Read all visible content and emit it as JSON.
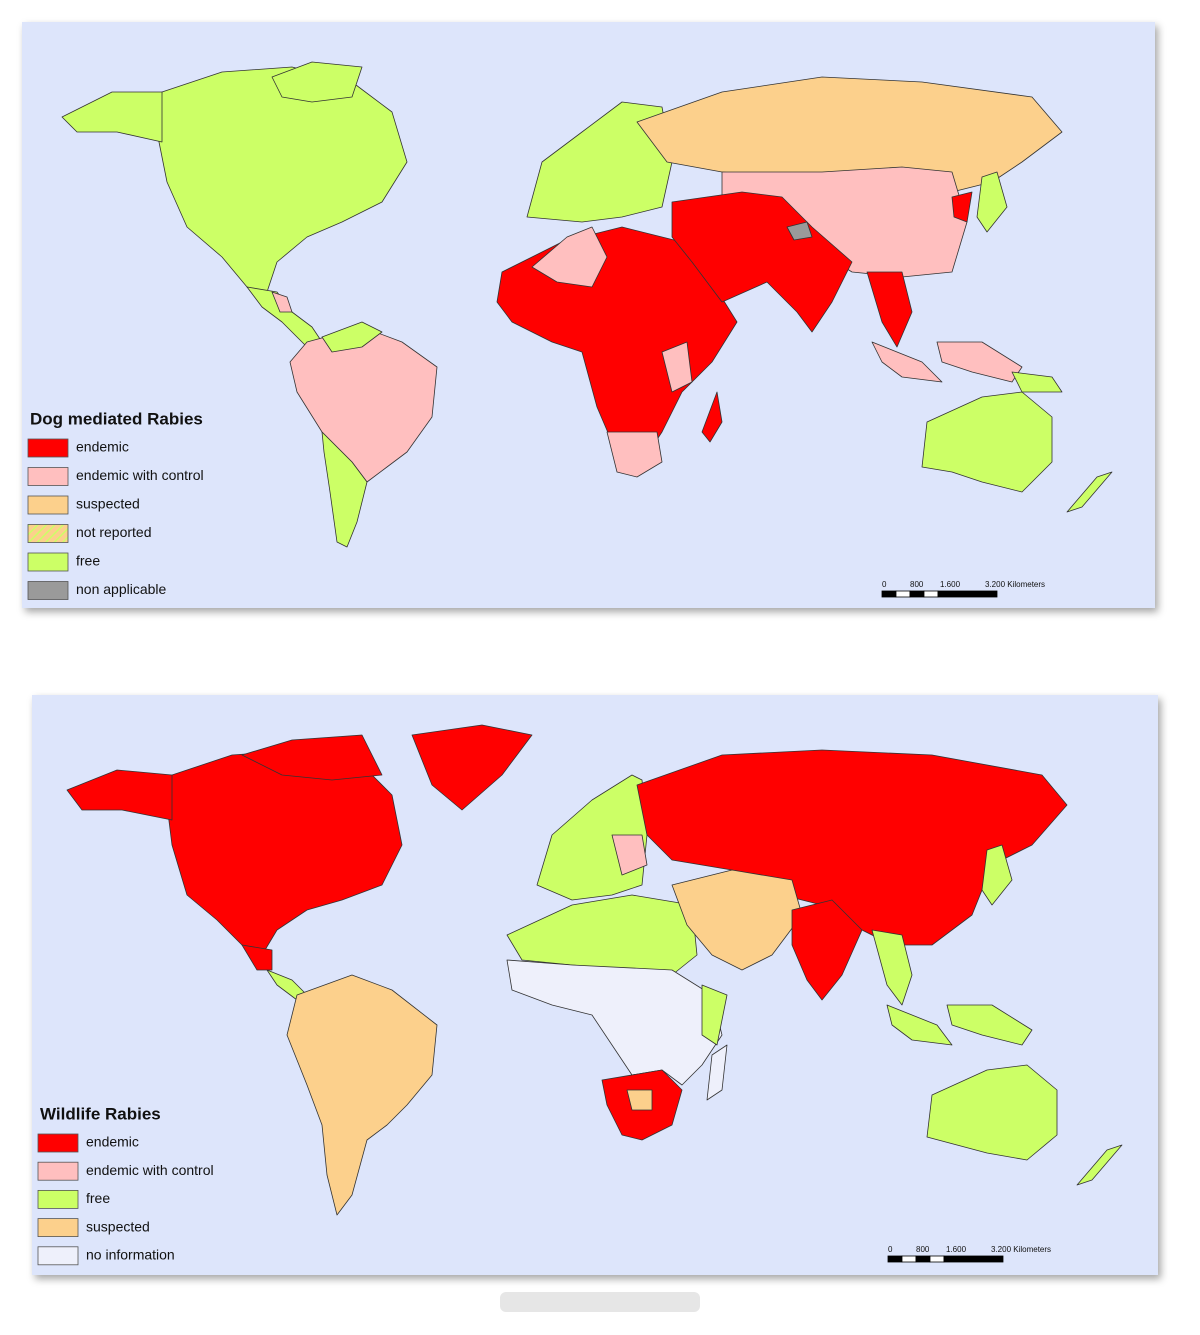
{
  "maps": [
    {
      "legend": {
        "title": "Dog mediated Rabies",
        "items": [
          {
            "label": "endemic",
            "color": "#ff0000"
          },
          {
            "label": "endemic with control",
            "color": "#ffbfbf"
          },
          {
            "label": "suspected",
            "color": "#fcd08c"
          },
          {
            "label": "not reported",
            "color": "#fcd08c",
            "hatched": true
          },
          {
            "label": "free",
            "color": "#ccff66"
          },
          {
            "label": "non applicable",
            "color": "#9a9a9a"
          }
        ]
      },
      "scale": {
        "labels": [
          "0",
          "800",
          "1.600",
          "3.200 Kilometers"
        ]
      }
    },
    {
      "legend": {
        "title": "Wildlife Rabies",
        "items": [
          {
            "label": "endemic",
            "color": "#ff0000"
          },
          {
            "label": "endemic with control",
            "color": "#ffbfbf"
          },
          {
            "label": "free",
            "color": "#ccff66"
          },
          {
            "label": "suspected",
            "color": "#fcd08c"
          },
          {
            "label": "no information",
            "color": "#eef0fb"
          }
        ]
      },
      "scale": {
        "labels": [
          "0",
          "800",
          "1.600",
          "3.200 Kilometers"
        ]
      }
    }
  ]
}
